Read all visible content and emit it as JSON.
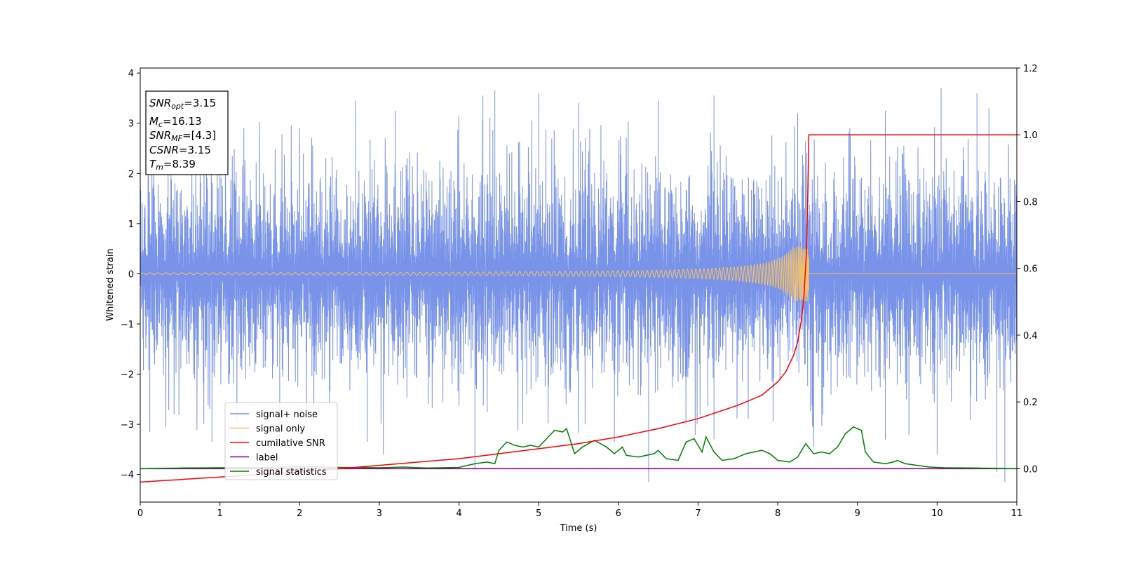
{
  "chart_data": {
    "type": "line",
    "xlabel": "Time (s)",
    "ylabel": "Whitened strain",
    "xlim": [
      0,
      11
    ],
    "ylim_left": [
      -4.55,
      4.1
    ],
    "ylim_right": [
      -0.1,
      1.2
    ],
    "x_ticks": [
      "0",
      "1",
      "2",
      "3",
      "4",
      "5",
      "6",
      "7",
      "8",
      "9",
      "10",
      "11"
    ],
    "y_left_ticks": [
      "4",
      "3",
      "2",
      "1",
      "0",
      "−1",
      "−2",
      "−3",
      "−4"
    ],
    "y_right_ticks": [
      "1.2",
      "1.0",
      "0.8",
      "0.6",
      "0.4",
      "0.2",
      "0.0"
    ],
    "grid": false,
    "legend_position": "lower-left",
    "annotation": {
      "snr_opt": {
        "base": "SNR",
        "sub": "opt",
        "value": "=3.15"
      },
      "mc": {
        "base": "M",
        "sub": "c",
        "value": "=16.13"
      },
      "snr_mf": {
        "base": "SNR",
        "sub": "MF",
        "value": "=[4.3]"
      },
      "csnr": {
        "base": "CSNR",
        "value": "=3.15"
      },
      "tm": {
        "base": "T",
        "sub": "m",
        "value": "=8.39"
      }
    },
    "series": [
      {
        "name": "signal+ noise",
        "color": "#6a87e6",
        "axis": "left",
        "kind": "noise",
        "amplitude_band": [
          -2.2,
          2.4
        ],
        "peak_spikes": [
          {
            "x": 0.1,
            "y": 2.7
          },
          {
            "x": 0.35,
            "y": 2.85
          },
          {
            "x": 1.0,
            "y": 2.9
          },
          {
            "x": 1.3,
            "y": 2.9
          },
          {
            "x": 2.0,
            "y": 2.9
          },
          {
            "x": 2.7,
            "y": 3.45
          },
          {
            "x": 3.2,
            "y": 3.25
          },
          {
            "x": 4.3,
            "y": 3.55
          },
          {
            "x": 4.45,
            "y": 3.65
          },
          {
            "x": 5.0,
            "y": 3.6
          },
          {
            "x": 5.5,
            "y": 3.4
          },
          {
            "x": 6.5,
            "y": 3.45
          },
          {
            "x": 7.2,
            "y": 3.55
          },
          {
            "x": 8.25,
            "y": 3.2
          },
          {
            "x": 9.35,
            "y": 3.25
          },
          {
            "x": 10.05,
            "y": 3.7
          },
          {
            "x": 10.5,
            "y": 3.6
          },
          {
            "x": 10.65,
            "y": 3.3
          }
        ],
        "trough_spikes": [
          {
            "x": 0.12,
            "y": -3.15
          },
          {
            "x": 0.9,
            "y": -3.35
          },
          {
            "x": 1.75,
            "y": -3.3
          },
          {
            "x": 2.85,
            "y": -3.35
          },
          {
            "x": 3.05,
            "y": -3.6
          },
          {
            "x": 4.2,
            "y": -3.9
          },
          {
            "x": 5.95,
            "y": -3.35
          },
          {
            "x": 6.38,
            "y": -4.15
          },
          {
            "x": 7.2,
            "y": -3.3
          },
          {
            "x": 8.45,
            "y": -3.45
          },
          {
            "x": 9.35,
            "y": -3.3
          },
          {
            "x": 10.0,
            "y": -3.6
          },
          {
            "x": 10.75,
            "y": -3.95
          },
          {
            "x": 10.85,
            "y": -4.15
          }
        ]
      },
      {
        "name": "signal only",
        "color": "#f5c26b",
        "axis": "left",
        "kind": "chirp",
        "merger_time": 8.39,
        "peak_amplitude": 0.55
      },
      {
        "name": "cumilative SNR",
        "color": "#ff0000",
        "axis": "right",
        "points": [
          [
            0,
            -0.04
          ],
          [
            1,
            -0.025
          ],
          [
            2,
            -0.01
          ],
          [
            3,
            0.01
          ],
          [
            4,
            0.03
          ],
          [
            5,
            0.06
          ],
          [
            5.5,
            0.075
          ],
          [
            6,
            0.095
          ],
          [
            6.5,
            0.12
          ],
          [
            7,
            0.15
          ],
          [
            7.5,
            0.19
          ],
          [
            7.8,
            0.22
          ],
          [
            8.0,
            0.26
          ],
          [
            8.1,
            0.29
          ],
          [
            8.2,
            0.34
          ],
          [
            8.25,
            0.38
          ],
          [
            8.3,
            0.45
          ],
          [
            8.33,
            0.52
          ],
          [
            8.36,
            0.65
          ],
          [
            8.38,
            0.85
          ],
          [
            8.39,
            1.0
          ],
          [
            11,
            1.0
          ]
        ]
      },
      {
        "name": "label",
        "color": "#800080",
        "axis": "right",
        "points": [
          [
            0,
            0.0
          ],
          [
            11,
            0.0
          ]
        ]
      },
      {
        "name": "signal statistics",
        "color": "#008000",
        "axis": "right",
        "points": [
          [
            0,
            0.0
          ],
          [
            0.5,
            0.002
          ],
          [
            1,
            0.003
          ],
          [
            1.5,
            0.003
          ],
          [
            2,
            0.006
          ],
          [
            2.5,
            0.004
          ],
          [
            3,
            0.003
          ],
          [
            3.3,
            0.005
          ],
          [
            3.6,
            0.002
          ],
          [
            4.0,
            0.004
          ],
          [
            4.2,
            0.015
          ],
          [
            4.35,
            0.02
          ],
          [
            4.45,
            0.015
          ],
          [
            4.5,
            0.055
          ],
          [
            4.6,
            0.08
          ],
          [
            4.7,
            0.07
          ],
          [
            4.8,
            0.065
          ],
          [
            4.9,
            0.07
          ],
          [
            5.0,
            0.065
          ],
          [
            5.1,
            0.09
          ],
          [
            5.2,
            0.115
          ],
          [
            5.3,
            0.11
          ],
          [
            5.35,
            0.12
          ],
          [
            5.45,
            0.045
          ],
          [
            5.55,
            0.065
          ],
          [
            5.7,
            0.085
          ],
          [
            5.85,
            0.065
          ],
          [
            5.95,
            0.045
          ],
          [
            6.05,
            0.065
          ],
          [
            6.1,
            0.04
          ],
          [
            6.25,
            0.035
          ],
          [
            6.35,
            0.04
          ],
          [
            6.45,
            0.045
          ],
          [
            6.5,
            0.055
          ],
          [
            6.6,
            0.03
          ],
          [
            6.75,
            0.025
          ],
          [
            6.85,
            0.08
          ],
          [
            6.95,
            0.09
          ],
          [
            7.05,
            0.05
          ],
          [
            7.1,
            0.095
          ],
          [
            7.2,
            0.05
          ],
          [
            7.3,
            0.025
          ],
          [
            7.45,
            0.03
          ],
          [
            7.6,
            0.045
          ],
          [
            7.7,
            0.05
          ],
          [
            7.8,
            0.055
          ],
          [
            7.9,
            0.045
          ],
          [
            8.0,
            0.025
          ],
          [
            8.15,
            0.02
          ],
          [
            8.25,
            0.035
          ],
          [
            8.35,
            0.075
          ],
          [
            8.45,
            0.045
          ],
          [
            8.55,
            0.05
          ],
          [
            8.65,
            0.045
          ],
          [
            8.75,
            0.065
          ],
          [
            8.85,
            0.105
          ],
          [
            8.95,
            0.125
          ],
          [
            9.05,
            0.115
          ],
          [
            9.1,
            0.05
          ],
          [
            9.2,
            0.02
          ],
          [
            9.35,
            0.015
          ],
          [
            9.45,
            0.02
          ],
          [
            9.5,
            0.025
          ],
          [
            9.6,
            0.015
          ],
          [
            9.75,
            0.01
          ],
          [
            9.9,
            0.005
          ],
          [
            10.1,
            0.003
          ],
          [
            10.5,
            0.002
          ],
          [
            11,
            0.0
          ]
        ]
      }
    ]
  }
}
